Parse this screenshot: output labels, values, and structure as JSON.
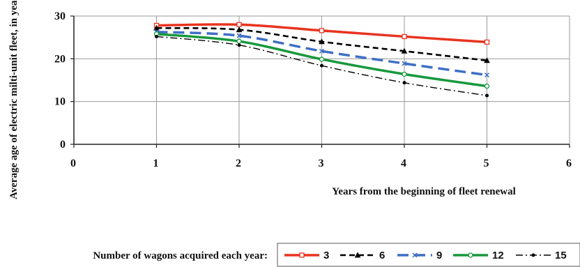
{
  "chart_data": {
    "type": "line",
    "title": "",
    "xlabel": "Years from the beginning of fleet renewal",
    "ylabel": "Average age of electric milti-unit fleet, in years",
    "xlim": [
      0,
      6
    ],
    "ylim": [
      0,
      30
    ],
    "x_ticks": [
      "0",
      "1",
      "2",
      "3",
      "4",
      "5",
      "6"
    ],
    "y_ticks": [
      "0",
      "10",
      "20",
      "30"
    ],
    "grid": true,
    "legend_title": "Number of wagons acquired each year:",
    "legend_position": "bottom",
    "x": [
      1,
      2,
      3,
      4,
      5
    ],
    "series": [
      {
        "name": "3",
        "color": "#e8331f",
        "style": "solid",
        "marker": "square",
        "values": [
          27.8,
          28.0,
          26.6,
          25.2,
          23.9
        ]
      },
      {
        "name": "6",
        "color": "#000000",
        "style": "dashed",
        "marker": "triangle",
        "values": [
          27.2,
          26.8,
          24.0,
          21.8,
          19.6
        ]
      },
      {
        "name": "9",
        "color": "#3d6fc4",
        "style": "longdash",
        "marker": "x",
        "values": [
          26.3,
          25.4,
          21.8,
          18.9,
          16.2
        ]
      },
      {
        "name": "12",
        "color": "#17983d",
        "style": "solid",
        "marker": "circle",
        "values": [
          25.8,
          24.1,
          19.9,
          16.4,
          13.6
        ]
      },
      {
        "name": "15",
        "color": "#000000",
        "style": "dashdot",
        "marker": "dot",
        "values": [
          25.2,
          23.2,
          18.4,
          14.4,
          11.4
        ]
      }
    ]
  }
}
